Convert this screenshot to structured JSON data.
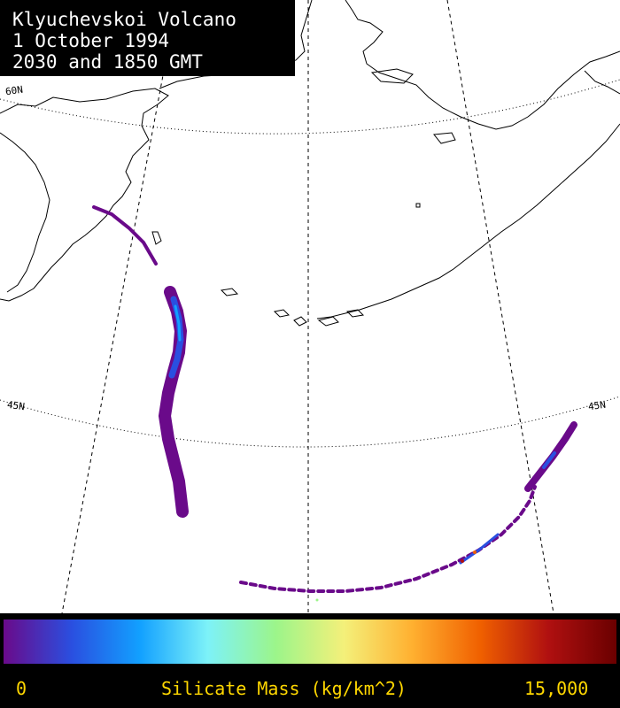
{
  "title": {
    "lines": [
      "Klyuchevskoi Volcano",
      "1 October 1994",
      "2030 and 1850 GMT"
    ]
  },
  "map": {
    "lat_labels": [
      "60N",
      "45N",
      "45N"
    ],
    "background_color": "#ffffff",
    "coastline_color": "#000000"
  },
  "colorbar": {
    "min_label": "0",
    "max_label": "15,000",
    "title": "Silicate Mass (kg/km^2)",
    "colors": [
      "#6a0a8a",
      "#2a4fe0",
      "#12a0ff",
      "#7df2f8",
      "#9cf58a",
      "#f4f07a",
      "#ffb030",
      "#f06000",
      "#b01010",
      "#6a0000"
    ],
    "label_color": "#ffd700"
  }
}
